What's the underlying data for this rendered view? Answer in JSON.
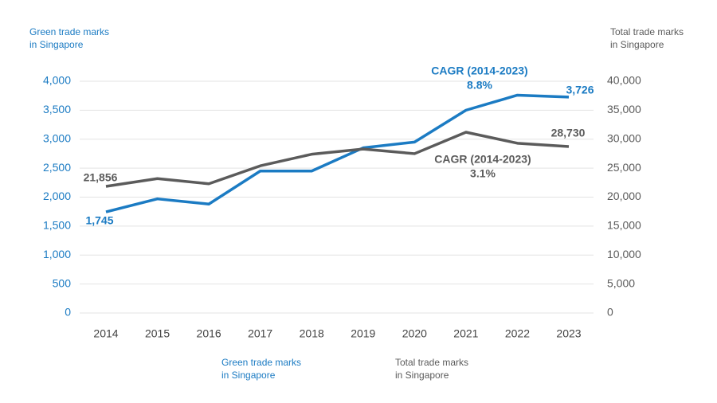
{
  "chart_data": {
    "type": "line",
    "ylabel": "Green trade marks\nin Singapore",
    "y2label": "Total trade marks\nin Singapore",
    "categories": [
      "2014",
      "2015",
      "2016",
      "2017",
      "2018",
      "2019",
      "2020",
      "2021",
      "2022",
      "2023"
    ],
    "series": [
      {
        "name": "Green trade marks\nin Singapore",
        "color": "#1b7bc3",
        "values": [
          1745,
          1970,
          1880,
          2450,
          2450,
          2850,
          2950,
          3500,
          3760,
          3726
        ],
        "value_labels": [
          "1,745",
          null,
          null,
          null,
          null,
          null,
          null,
          null,
          null,
          "3,726"
        ],
        "annotation": [
          "CAGR (2014-2023)",
          "8.8%"
        ]
      },
      {
        "name": "Total trade marks\nin Singapore",
        "color": "#5b5b5b",
        "axis": "y2",
        "values": [
          21856,
          23200,
          22300,
          25400,
          27400,
          28300,
          27500,
          31200,
          29300,
          28730
        ],
        "value_labels": [
          "21,856",
          null,
          null,
          null,
          null,
          null,
          null,
          null,
          null,
          "28,730"
        ],
        "annotation": [
          "CAGR (2014-2023)",
          "3.1%"
        ]
      }
    ],
    "ylim": [
      0,
      4000
    ],
    "yticks": [
      0,
      500,
      {
        "value": 1000,
        "label": "1,000"
      },
      {
        "value": 1500,
        "label": "1,500"
      },
      {
        "value": 2000,
        "label": "2,000"
      },
      {
        "value": 2500,
        "label": "2,500"
      },
      {
        "value": 3000,
        "label": "3,000"
      },
      {
        "value": 3500,
        "label": "3,500"
      },
      {
        "value": 4000,
        "label": "4,000"
      }
    ],
    "y2lim": [
      0,
      40000
    ],
    "y2ticks": [
      0,
      {
        "value": 5000,
        "label": "5,000"
      },
      {
        "value": 10000,
        "label": "10,000"
      },
      {
        "value": 15000,
        "label": "15,000"
      },
      {
        "value": 20000,
        "label": "20,000"
      },
      {
        "value": 25000,
        "label": "25,000"
      },
      {
        "value": 30000,
        "label": "30,000"
      },
      {
        "value": 35000,
        "label": "35,000"
      },
      {
        "value": 40000,
        "label": "40,000"
      }
    ],
    "grid": true
  }
}
